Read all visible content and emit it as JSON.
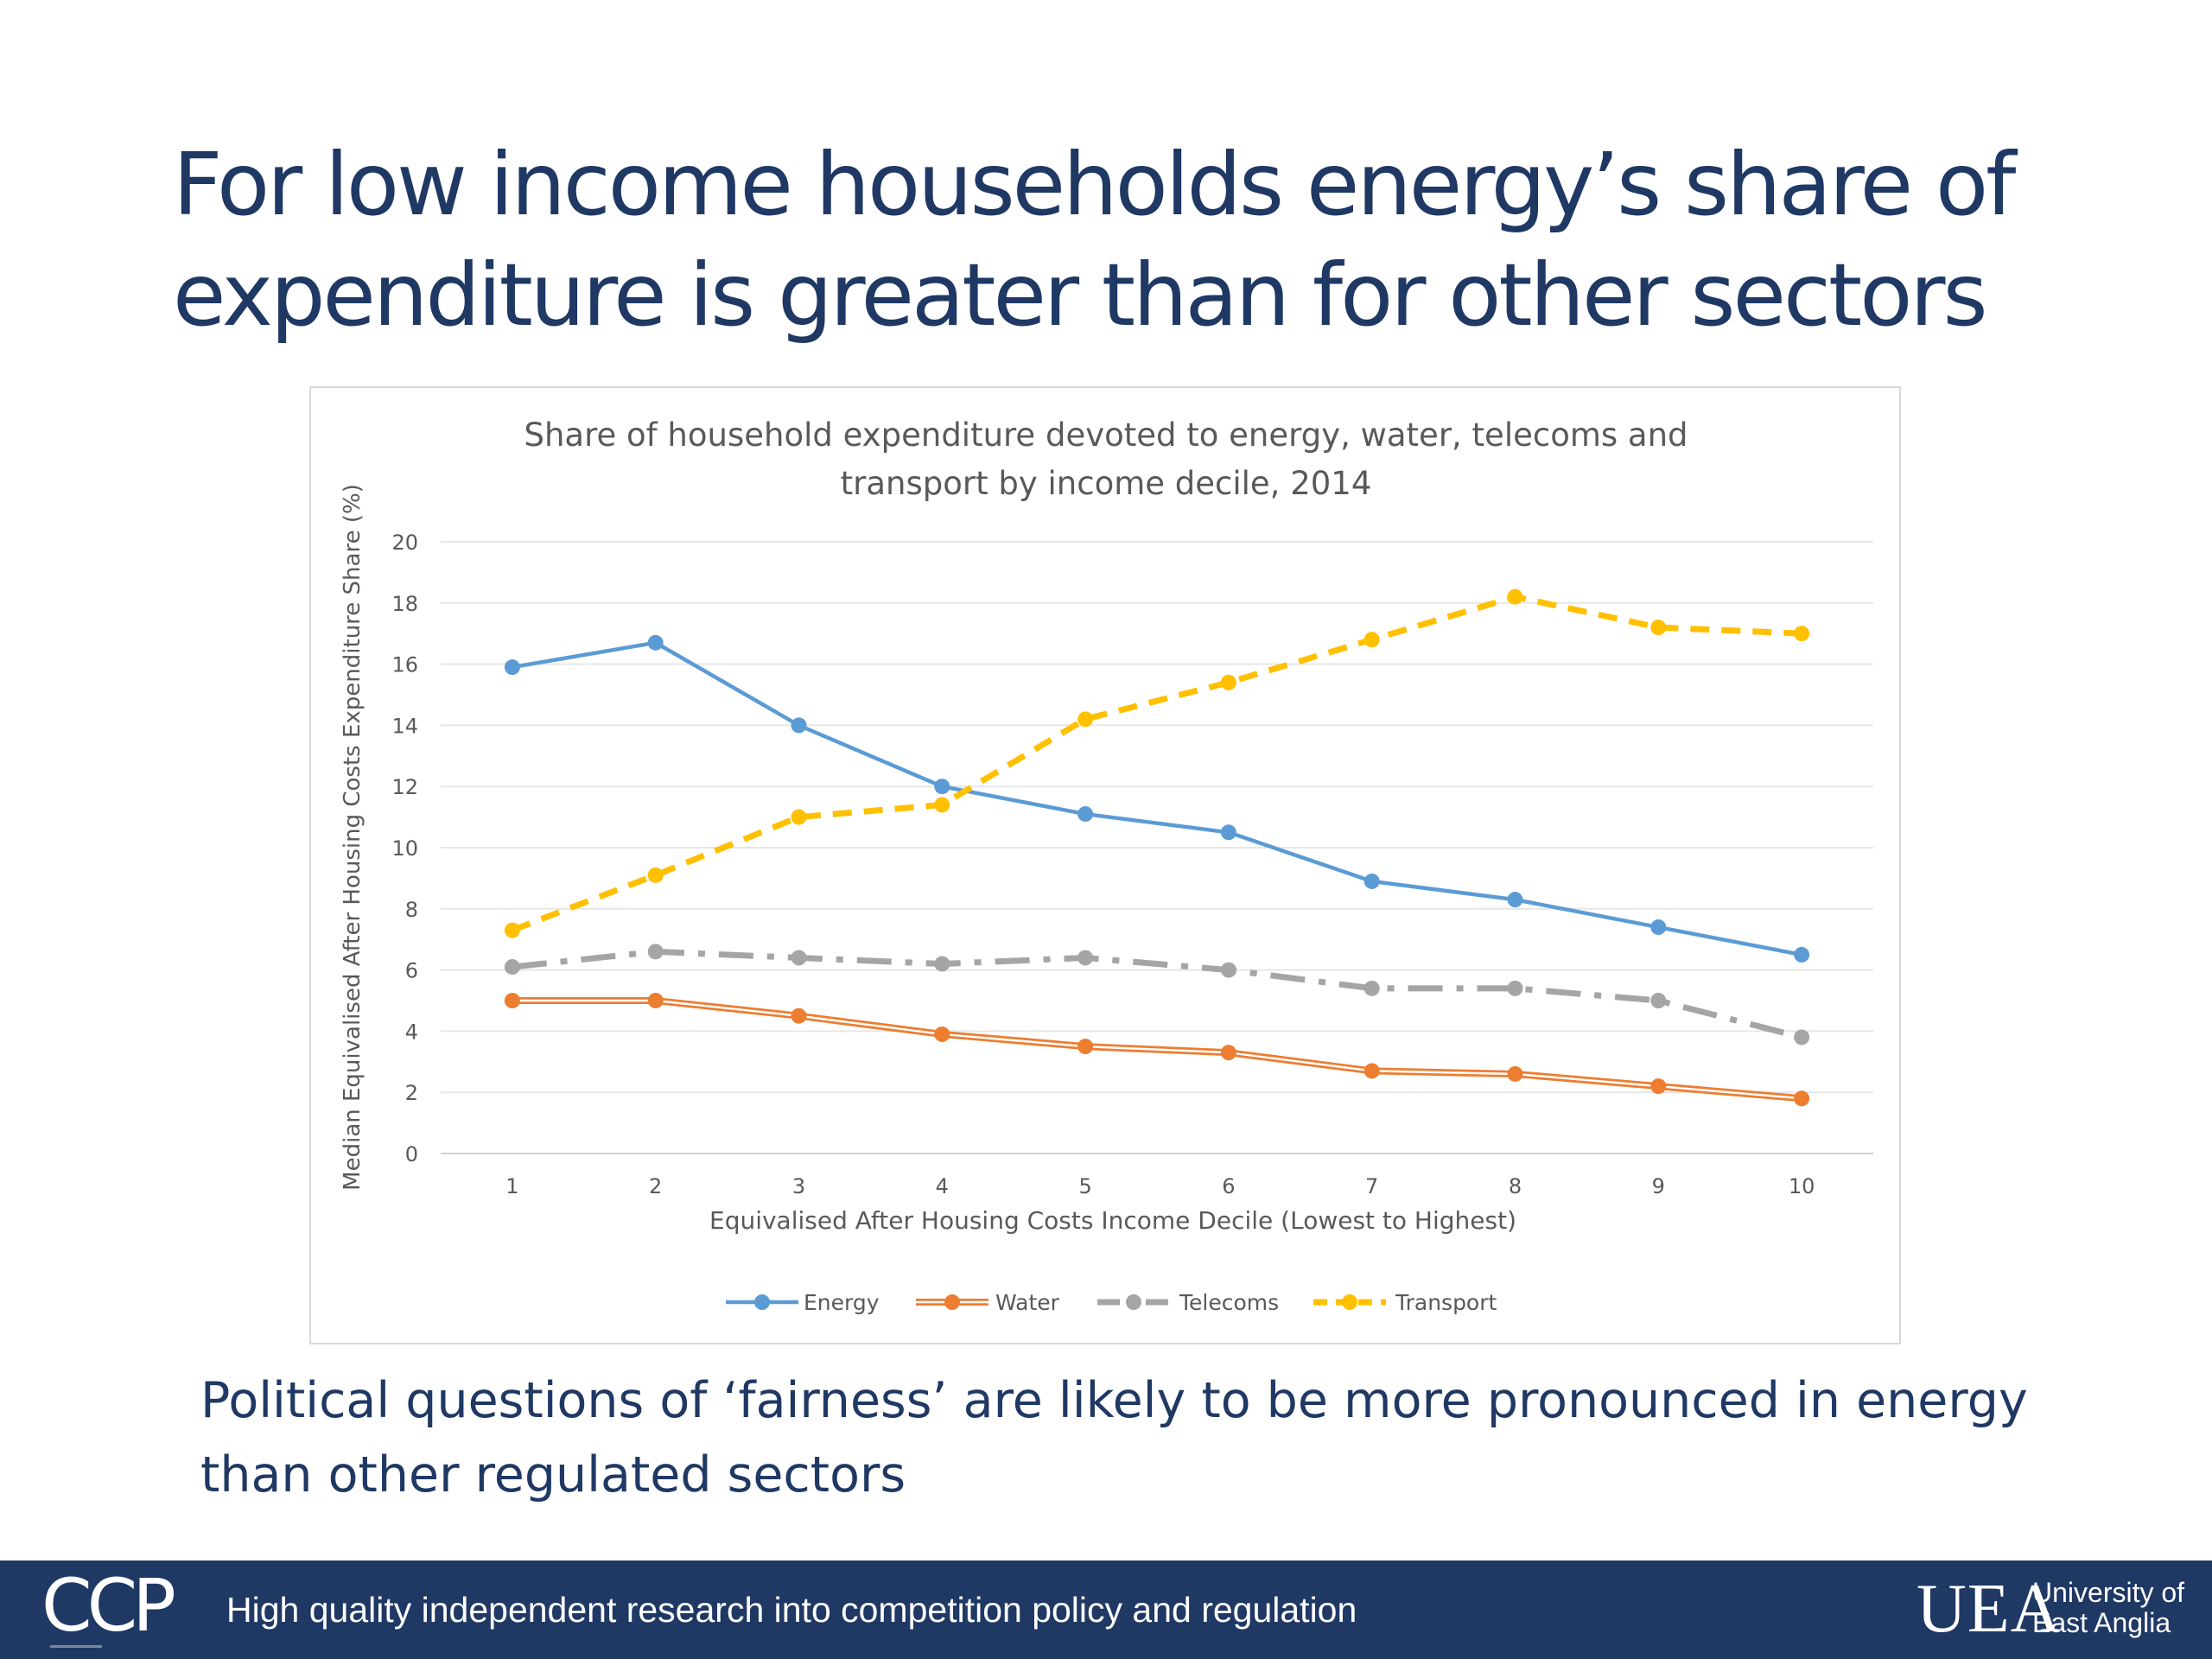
{
  "slide": {
    "title_lines": [
      "For low income households energy’s share of",
      "expenditure is greater than for other sectors"
    ],
    "subtitle_lines": [
      "Political questions of ‘fairness’ are likely to be more pronounced in energy",
      "than other regulated sectors"
    ]
  },
  "footer": {
    "logo_text": "CCP",
    "tagline": "High quality independent research into competition policy and regulation",
    "uea_mark": "UEA",
    "uea_name_lines": [
      "University of",
      "East Anglia"
    ]
  },
  "colors": {
    "title": "#1f3864",
    "footer_bg": "#1f3864",
    "energy": "#5b9bd5",
    "water": "#ed7d31",
    "telecoms": "#a5a5a5",
    "transport": "#ffc000",
    "grid": "#e6e6e6",
    "text": "#595959"
  },
  "chart_data": {
    "type": "line",
    "title_lines": [
      "Share of household expenditure devoted to energy, water, telecoms and",
      "transport by income decile, 2014"
    ],
    "xlabel": "Equivalised After Housing Costs Income Decile (Lowest to Highest)",
    "ylabel": "Median Equivalised After Housing Costs Expenditure Share (%)",
    "categories": [
      "1",
      "2",
      "3",
      "4",
      "5",
      "6",
      "7",
      "8",
      "9",
      "10"
    ],
    "ylim": [
      0,
      20
    ],
    "yticks": [
      0,
      2,
      4,
      6,
      8,
      10,
      12,
      14,
      16,
      18,
      20
    ],
    "grid": true,
    "legend_position": "bottom",
    "series": [
      {
        "name": "Energy",
        "style": "solid",
        "color_key": "energy",
        "values": [
          15.9,
          16.7,
          14.0,
          12.0,
          11.1,
          10.5,
          8.9,
          8.3,
          7.4,
          6.5
        ]
      },
      {
        "name": "Water",
        "style": "double",
        "color_key": "water",
        "values": [
          5.0,
          5.0,
          4.5,
          3.9,
          3.5,
          3.3,
          2.7,
          2.6,
          2.2,
          1.8
        ]
      },
      {
        "name": "Telecoms",
        "style": "dashdot",
        "color_key": "telecoms",
        "values": [
          6.1,
          6.6,
          6.4,
          6.2,
          6.4,
          6.0,
          5.4,
          5.4,
          5.0,
          3.8
        ]
      },
      {
        "name": "Transport",
        "style": "dash",
        "color_key": "transport",
        "values": [
          7.3,
          9.1,
          11.0,
          11.4,
          14.2,
          15.4,
          16.8,
          18.2,
          17.2,
          17.0
        ]
      }
    ]
  }
}
